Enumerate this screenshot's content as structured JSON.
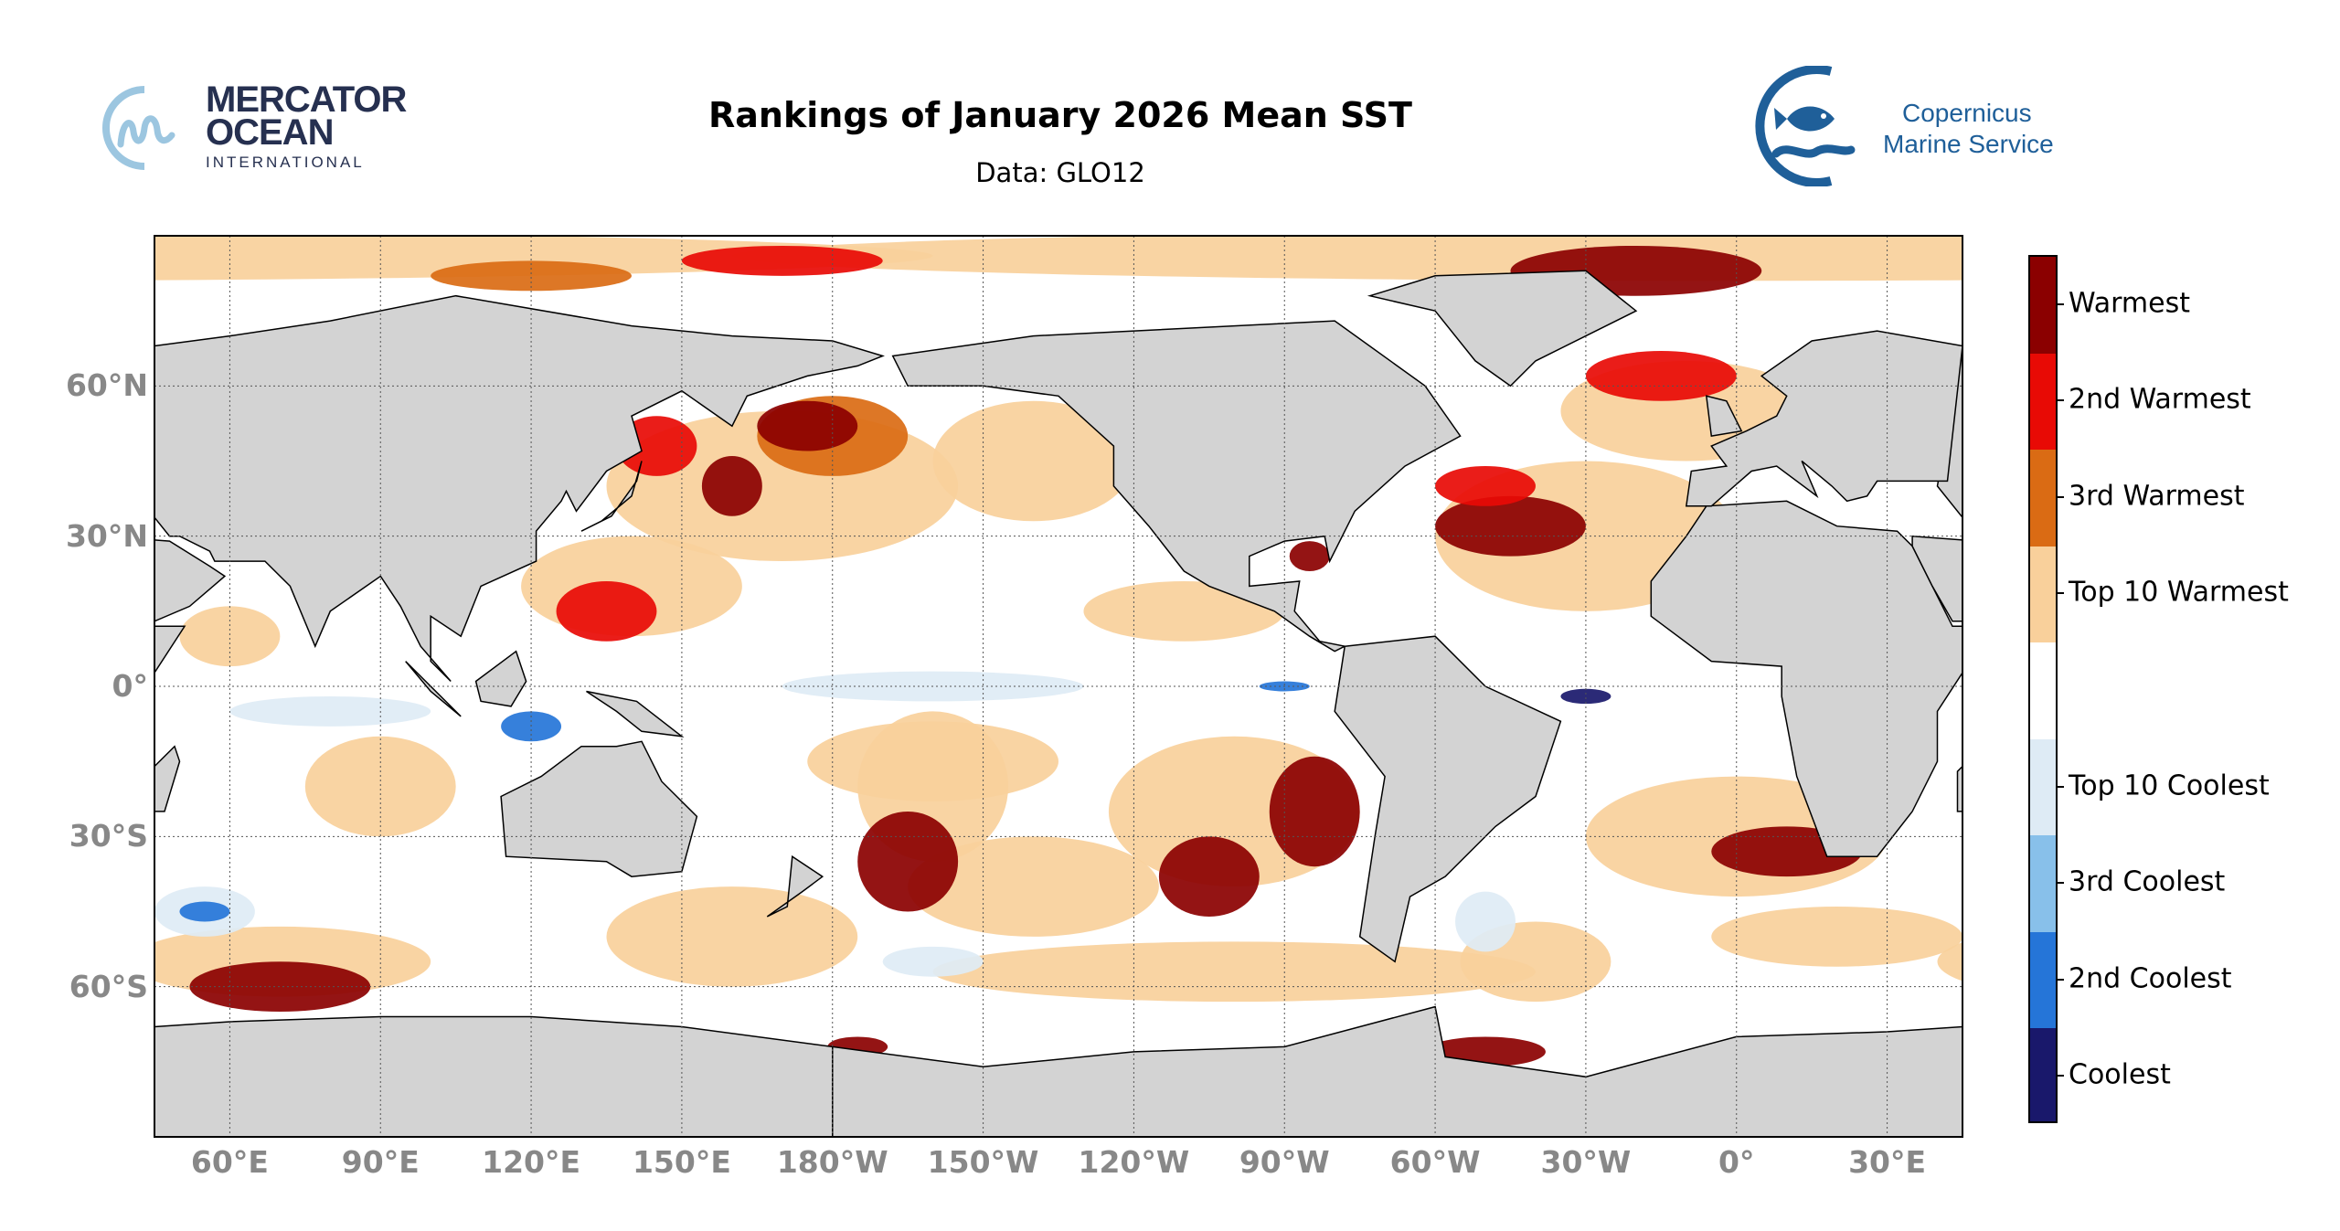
{
  "header": {
    "title": "Rankings of January 2026 Mean SST",
    "subtitle": "Data: GLO12"
  },
  "logos": {
    "mercator": {
      "line1": "MERCATOR",
      "line2": "OCEAN",
      "line3": "INTERNATIONAL",
      "color": "#263050",
      "accent": "#9cc6e0"
    },
    "copernicus": {
      "line1": "Copernicus",
      "line2": "Marine Service",
      "color": "#1f5f99"
    }
  },
  "chart_data": {
    "type": "heatmap",
    "projection": "plate carree, global",
    "title": "Rankings of January 2026 Mean SST",
    "subtitle": "Data: GLO12",
    "lon_range": [
      45,
      405
    ],
    "lat_range": [
      -90,
      90
    ],
    "grid": true,
    "land_color": "#d3d3d3",
    "x_ticks": [
      "60°E",
      "90°E",
      "120°E",
      "150°E",
      "180°W",
      "150°W",
      "120°W",
      "90°W",
      "60°W",
      "30°W",
      "0°",
      "30°E"
    ],
    "x_tick_lons": [
      60,
      90,
      120,
      150,
      180,
      210,
      240,
      270,
      300,
      330,
      360,
      390
    ],
    "y_ticks": [
      "60°N",
      "30°N",
      "0°",
      "30°S",
      "60°S"
    ],
    "y_tick_lats": [
      60,
      30,
      0,
      -30,
      -60
    ],
    "legend_placement": "right",
    "categories": [
      {
        "label": "Warmest",
        "color": "#8b0000"
      },
      {
        "label": "2nd Warmest",
        "color": "#e80a05"
      },
      {
        "label": "3rd Warmest",
        "color": "#da6b14"
      },
      {
        "label": "Top 10 Warmest",
        "color": "#f9d09b"
      },
      {
        "label": "",
        "color": "#ffffff"
      },
      {
        "label": "Top 10 Coolest",
        "color": "#deebf5"
      },
      {
        "label": "3rd Coolest",
        "color": "#88c0ea"
      },
      {
        "label": "2nd Coolest",
        "color": "#2575d8"
      },
      {
        "label": "Coolest",
        "color": "#19186b"
      }
    ]
  }
}
